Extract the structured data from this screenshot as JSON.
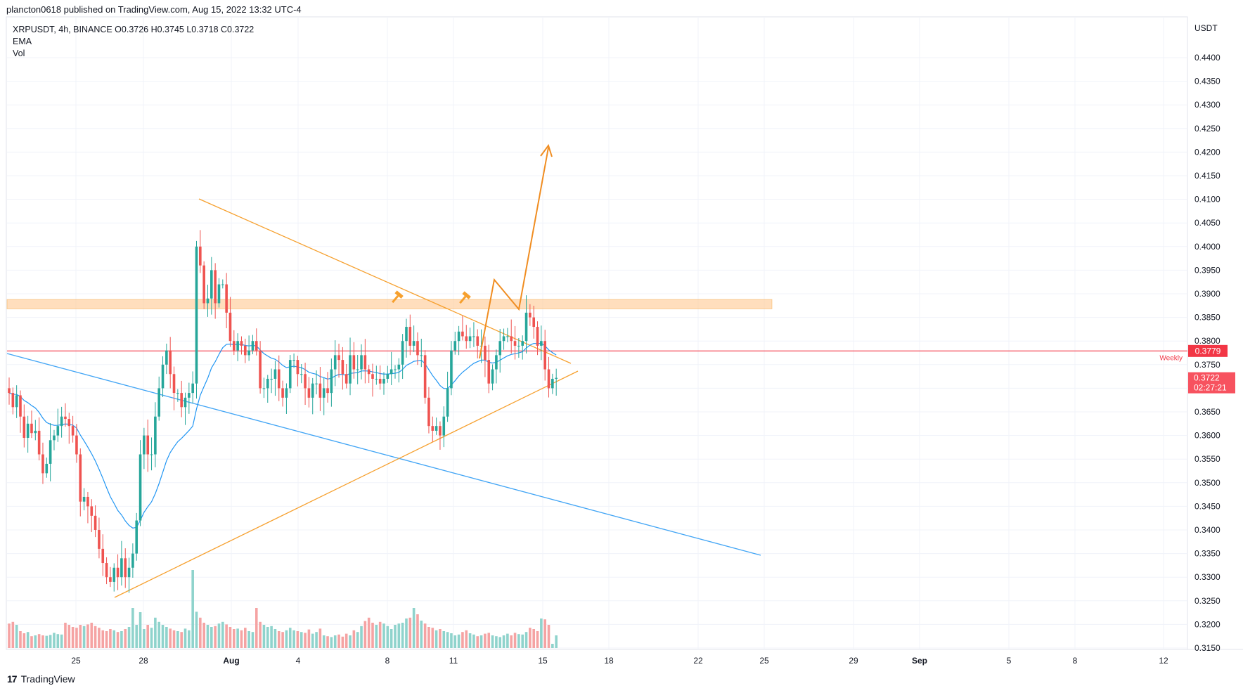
{
  "header": {
    "published_line": "plancton0618 published on TradingView.com, Aug 15, 2022 13:32 UTC-4"
  },
  "legend": {
    "symbol_line": "XRPUSDT, 4h, BINANCE  O0.3726  H0.3745  L0.3718  C0.3722",
    "ema": "EMA",
    "vol": "Vol"
  },
  "footer": {
    "logo_mark": "17",
    "logo_text": "TradingView"
  },
  "price_axis": {
    "currency": "USDT",
    "ticks": [
      "0.4400",
      "0.4350",
      "0.4300",
      "0.4250",
      "0.4200",
      "0.4150",
      "0.4100",
      "0.4050",
      "0.4000",
      "0.3950",
      "0.3900",
      "0.3850",
      "0.3800",
      "0.3750",
      "0.3700",
      "0.3650",
      "0.3600",
      "0.3550",
      "0.3500",
      "0.3450",
      "0.3400",
      "0.3350",
      "0.3300",
      "0.3250",
      "0.3200",
      "0.3150"
    ]
  },
  "time_axis": {
    "labels": [
      {
        "text": "25",
        "bold": false
      },
      {
        "text": "28",
        "bold": false
      },
      {
        "text": "Aug",
        "bold": true
      },
      {
        "text": "4",
        "bold": false
      },
      {
        "text": "8",
        "bold": false
      },
      {
        "text": "11",
        "bold": false
      },
      {
        "text": "15",
        "bold": false
      },
      {
        "text": "18",
        "bold": false
      },
      {
        "text": "22",
        "bold": false
      },
      {
        "text": "25",
        "bold": false
      },
      {
        "text": "29",
        "bold": false
      },
      {
        "text": "Sep",
        "bold": true
      },
      {
        "text": "5",
        "bold": false
      },
      {
        "text": "8",
        "bold": false
      },
      {
        "text": "12",
        "bold": false
      }
    ]
  },
  "badges": {
    "weekly_price": "0.3779",
    "weekly_label": "Weekly",
    "last_price": "0.3722",
    "countdown": "02:27:21"
  },
  "colors": {
    "up": "#26a69a",
    "down": "#ef5350",
    "vol_up": "#8fd3cc",
    "vol_down": "#f5a3a3",
    "ema": "#2196f3",
    "orange": "#f6a02e",
    "zone": "#ffcc99",
    "weekly": "#f23645",
    "grid": "#f0f3fa"
  },
  "chart_data": {
    "type": "candlestick",
    "symbol": "XRPUSDT",
    "interval": "4h",
    "exchange": "BINANCE",
    "ylim": [
      0.3135,
      0.4455
    ],
    "last_ohlc": {
      "open": 0.3726,
      "high": 0.3745,
      "low": 0.3718,
      "close": 0.3722
    },
    "weekly_level": 0.3779,
    "resistance_zone": [
      0.3868,
      0.3888
    ],
    "candles_close": [
      0.369,
      0.366,
      0.3685,
      0.364,
      0.3595,
      0.3625,
      0.3605,
      0.361,
      0.356,
      0.352,
      0.354,
      0.359,
      0.36,
      0.362,
      0.364,
      0.3635,
      0.362,
      0.36,
      0.356,
      0.346,
      0.347,
      0.345,
      0.343,
      0.34,
      0.336,
      0.333,
      0.33,
      0.329,
      0.332,
      0.33,
      0.334,
      0.33,
      0.332,
      0.335,
      0.342,
      0.356,
      0.36,
      0.356,
      0.356,
      0.364,
      0.37,
      0.375,
      0.378,
      0.373,
      0.369,
      0.369,
      0.366,
      0.368,
      0.369,
      0.371,
      0.4,
      0.396,
      0.388,
      0.389,
      0.395,
      0.388,
      0.392,
      0.392,
      0.386,
      0.38,
      0.378,
      0.38,
      0.379,
      0.377,
      0.378,
      0.38,
      0.378,
      0.37,
      0.37,
      0.372,
      0.372,
      0.374,
      0.37,
      0.368,
      0.37,
      0.376,
      0.376,
      0.373,
      0.373,
      0.37,
      0.368,
      0.371,
      0.371,
      0.368,
      0.37,
      0.369,
      0.374,
      0.377,
      0.376,
      0.373,
      0.371,
      0.377,
      0.374,
      0.374,
      0.377,
      0.374,
      0.373,
      0.372,
      0.372,
      0.371,
      0.372,
      0.373,
      0.374,
      0.374,
      0.375,
      0.38,
      0.383,
      0.379,
      0.38,
      0.377,
      0.377,
      0.368,
      0.362,
      0.361,
      0.362,
      0.36,
      0.364,
      0.37,
      0.378,
      0.38,
      0.382,
      0.381,
      0.38,
      0.381,
      0.381,
      0.379,
      0.379,
      0.376,
      0.371,
      0.374,
      0.377,
      0.38,
      0.381,
      0.381,
      0.38,
      0.379,
      0.379,
      0.38,
      0.386,
      0.385,
      0.383,
      0.379,
      0.38,
      0.374,
      0.37,
      0.372,
      0.3722
    ],
    "candle_start_date": "Jul 22, 2022",
    "volume_relative": [
      0.58,
      0.62,
      0.55,
      0.4,
      0.35,
      0.38,
      0.28,
      0.3,
      0.33,
      0.3,
      0.29,
      0.31,
      0.36,
      0.33,
      0.32,
      0.6,
      0.55,
      0.5,
      0.48,
      0.55,
      0.52,
      0.56,
      0.6,
      0.52,
      0.48,
      0.42,
      0.4,
      0.45,
      0.42,
      0.38,
      0.4,
      0.45,
      0.5,
      0.95,
      0.55,
      0.85,
      0.45,
      0.55,
      0.48,
      0.72,
      0.62,
      0.55,
      0.5,
      0.46,
      0.42,
      0.4,
      0.38,
      0.46,
      0.42,
      1.85,
      0.86,
      0.72,
      0.6,
      0.55,
      0.5,
      0.52,
      0.58,
      0.62,
      0.56,
      0.5,
      0.45,
      0.46,
      0.42,
      0.48,
      0.4,
      0.38,
      0.95,
      0.62,
      0.55,
      0.5,
      0.52,
      0.45,
      0.4,
      0.38,
      0.42,
      0.48,
      0.42,
      0.4,
      0.38,
      0.36,
      0.44,
      0.34,
      0.38,
      0.46,
      0.3,
      0.28,
      0.26,
      0.3,
      0.32,
      0.27,
      0.34,
      0.3,
      0.42,
      0.38,
      0.52,
      0.64,
      0.72,
      0.6,
      0.55,
      0.62,
      0.58,
      0.52,
      0.45,
      0.55,
      0.58,
      0.6,
      0.7,
      0.72,
      0.95,
      0.8,
      0.65,
      0.58,
      0.5,
      0.48,
      0.42,
      0.45,
      0.4,
      0.38,
      0.35,
      0.3,
      0.32,
      0.38,
      0.42,
      0.35,
      0.32,
      0.28,
      0.3,
      0.34,
      0.36,
      0.3,
      0.28,
      0.26,
      0.3,
      0.34,
      0.3,
      0.36,
      0.33,
      0.32,
      0.38,
      0.48,
      0.45,
      0.4,
      0.7,
      0.68,
      0.55,
      0.1
    ]
  }
}
